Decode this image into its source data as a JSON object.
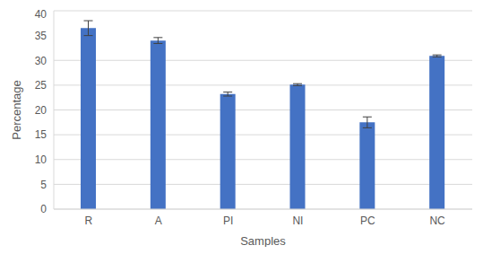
{
  "chart_data": {
    "type": "bar",
    "categories": [
      "R",
      "A",
      "PI",
      "NI",
      "PC",
      "NC"
    ],
    "values": [
      36.5,
      34.0,
      23.2,
      25.1,
      17.5,
      30.9
    ],
    "error": [
      1.5,
      0.6,
      0.4,
      0.2,
      1.1,
      0.2
    ],
    "color": "#4472c4",
    "xlabel": "Samples",
    "ylabel": "Percentage",
    "ylim": [
      0,
      40
    ],
    "yticks": [
      0,
      5,
      10,
      15,
      20,
      25,
      30,
      35,
      40
    ],
    "grid": true
  }
}
